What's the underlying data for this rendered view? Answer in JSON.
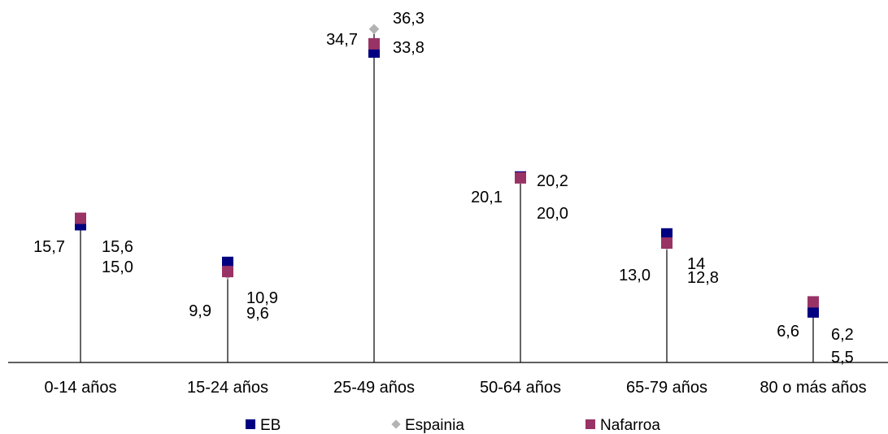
{
  "chart_data": {
    "type": "scatter",
    "categories": [
      "0-14 años",
      "15-24 años",
      "25-49 años",
      "50-64 años",
      "65-79 años",
      "80 o más años"
    ],
    "series": [
      {
        "name": "EB",
        "color": "#000080",
        "marker": "square",
        "values": [
          15.0,
          10.9,
          33.8,
          20.2,
          14,
          5.5
        ],
        "labels": [
          "15,0",
          "10,9",
          "33,8",
          "20,2",
          "14",
          "5,5"
        ]
      },
      {
        "name": "Espainia",
        "color": "#B3B3B3",
        "marker": "diamond",
        "values": [
          15.6,
          9.6,
          36.3,
          20.0,
          12.8,
          6.2
        ],
        "labels": [
          "15,6",
          "9,6",
          "36,3",
          "20,0",
          "12,8",
          "6,2"
        ]
      },
      {
        "name": "Nafarroa",
        "color": "#993366",
        "marker": "square",
        "values": [
          15.7,
          9.9,
          34.7,
          20.1,
          13.0,
          6.6
        ],
        "labels": [
          "15,7",
          "9,9",
          "34,7",
          "20,1",
          "13,0",
          "6,6"
        ]
      }
    ],
    "drop_lines": true,
    "grid": false,
    "legend_position": "bottom",
    "ylim": [
      0,
      40
    ],
    "title": "",
    "xlabel": "",
    "ylabel": ""
  }
}
